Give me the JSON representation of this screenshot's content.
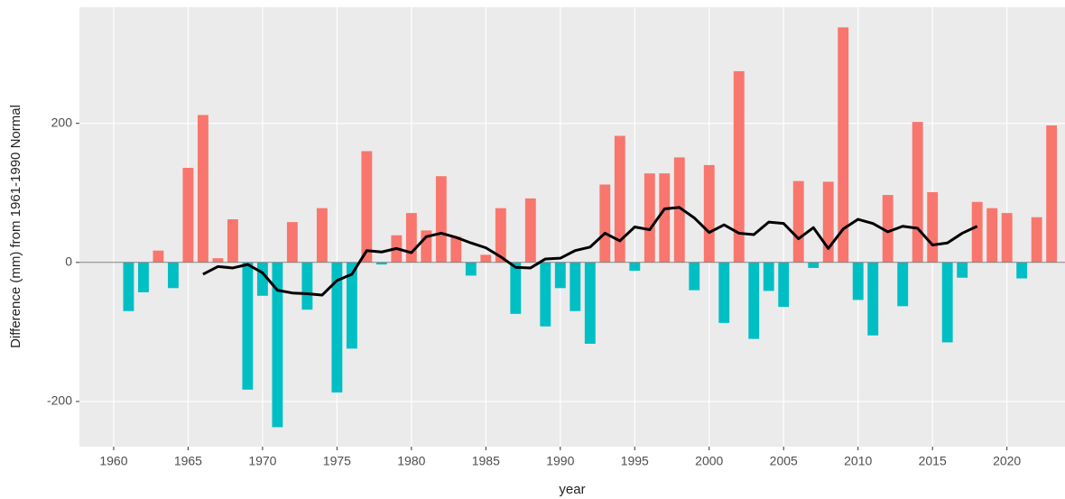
{
  "chart_data": {
    "type": "bar",
    "x_label": "year",
    "y_label": "Difference (mm) from 1961-1990 Normal",
    "xlim": [
      1957.7,
      2023.9
    ],
    "ylim": [
      -265,
      367
    ],
    "xticks": [
      1960,
      1965,
      1970,
      1975,
      1980,
      1985,
      1990,
      1995,
      2000,
      2005,
      2010,
      2015,
      2020
    ],
    "yticks": [
      -200,
      0,
      200
    ],
    "grid": true,
    "hline": 0,
    "positive_color": "#F8766D",
    "negative_color": "#00BFC4",
    "bars": {
      "x": [
        1961,
        1962,
        1963,
        1964,
        1965,
        1966,
        1967,
        1968,
        1969,
        1970,
        1971,
        1972,
        1973,
        1974,
        1975,
        1976,
        1977,
        1978,
        1979,
        1980,
        1981,
        1982,
        1983,
        1984,
        1985,
        1986,
        1987,
        1988,
        1989,
        1990,
        1991,
        1992,
        1993,
        1994,
        1995,
        1996,
        1997,
        1998,
        1999,
        2000,
        2001,
        2002,
        2003,
        2004,
        2005,
        2006,
        2007,
        2008,
        2009,
        2010,
        2011,
        2012,
        2013,
        2014,
        2015,
        2016,
        2017,
        2018,
        2019,
        2020,
        2021,
        2022,
        2023
      ],
      "values": [
        -70,
        -43,
        17,
        -37,
        136,
        212,
        6,
        62,
        -183,
        -48,
        -237,
        58,
        -68,
        78,
        -187,
        -124,
        160,
        -3,
        39,
        71,
        46,
        124,
        37,
        -19,
        11,
        78,
        -74,
        92,
        -92,
        -37,
        -70,
        -117,
        112,
        182,
        -12,
        128,
        128,
        151,
        -40,
        140,
        -87,
        275,
        -110,
        -41,
        -64,
        117,
        -8,
        116,
        338,
        -54,
        -105,
        97,
        -63,
        202,
        101,
        -115,
        -22,
        87,
        78,
        71,
        -23,
        65,
        197
      ]
    },
    "line": {
      "color": "#000000",
      "x": [
        1966,
        1967,
        1968,
        1969,
        1970,
        1971,
        1972,
        1973,
        1974,
        1975,
        1976,
        1977,
        1978,
        1979,
        1980,
        1981,
        1982,
        1983,
        1984,
        1985,
        1986,
        1987,
        1988,
        1989,
        1990,
        1991,
        1992,
        1993,
        1994,
        1995,
        1996,
        1997,
        1998,
        1999,
        2000,
        2001,
        2002,
        2003,
        2004,
        2005,
        2006,
        2007,
        2008,
        2009,
        2010,
        2011,
        2012,
        2013,
        2014,
        2015,
        2016,
        2017,
        2018
      ],
      "values": [
        -17,
        -6,
        -8,
        -3,
        -15,
        -40,
        -44,
        -45,
        -47,
        -26,
        -17,
        17,
        15,
        20,
        14,
        37,
        42,
        36,
        28,
        21,
        8,
        -7,
        -8,
        5,
        6,
        17,
        22,
        42,
        31,
        51,
        47,
        77,
        79,
        64,
        43,
        54,
        42,
        40,
        58,
        56,
        34,
        50,
        20,
        48,
        62,
        56,
        44,
        52,
        49,
        25,
        28,
        42,
        52
      ]
    }
  }
}
